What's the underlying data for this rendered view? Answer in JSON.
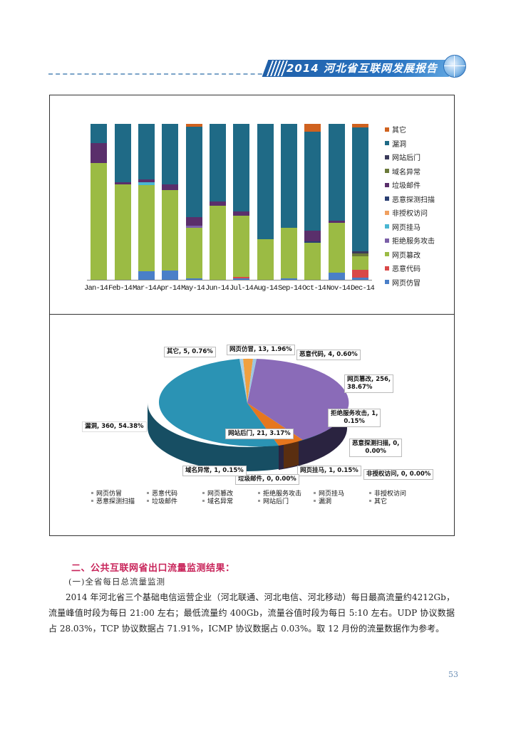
{
  "header": {
    "title": "2014 河北省互联网发展报告",
    "band_color": "#1f5fa8",
    "rule_color": "#7aa3c8"
  },
  "colors": {
    "其它": "#d0621f",
    "漏洞": "#1f6a86",
    "网站后门": "#3a3a5a",
    "域名异常": "#6b7a3a",
    "垃圾邮件": "#5a2f6b",
    "恶意探测扫描": "#2a3f72",
    "非授权访问": "#f0a060",
    "网页挂马": "#4ab6d2",
    "拒绝服务攻击": "#7b5fa8",
    "网页篡改": "#9bbb44",
    "恶意代码": "#d94848",
    "网页仿冒": "#4a7fc8"
  },
  "chart_data": [
    {
      "type": "bar",
      "stacked": true,
      "percent_stacked": true,
      "title": "",
      "xlabel": "",
      "ylabel": "",
      "ylim": [
        0,
        100
      ],
      "categories": [
        "Jan-14",
        "Feb-14",
        "Mar-14",
        "Apr-14",
        "May-14",
        "Jun-14",
        "Jul-14",
        "Aug-14",
        "Sep-14",
        "Oct-14",
        "Nov-14",
        "Dec-14"
      ],
      "legend_position": "right",
      "legend": [
        "其它",
        "漏洞",
        "网站后门",
        "域名异常",
        "垃圾邮件",
        "恶意探测扫描",
        "非授权访问",
        "网页挂马",
        "拒绝服务攻击",
        "网页篡改",
        "恶意代码",
        "网页仿冒"
      ],
      "series": [
        {
          "name": "网页仿冒",
          "values": [
            0,
            0,
            5.3,
            5.8,
            1.0,
            0,
            1.0,
            0,
            1.0,
            0,
            4.6,
            1.5
          ]
        },
        {
          "name": "恶意代码",
          "values": [
            0,
            0,
            0,
            0,
            0,
            0,
            1.0,
            0,
            0,
            0,
            0,
            4.9
          ]
        },
        {
          "name": "网页篡改",
          "values": [
            75.0,
            61.4,
            55.6,
            51.8,
            32.3,
            47.7,
            39.0,
            26.2,
            32.5,
            23.9,
            31.9,
            8.8
          ]
        },
        {
          "name": "拒绝服务攻击",
          "values": [
            0,
            0,
            0,
            0,
            1.5,
            0,
            0,
            0,
            0,
            0,
            0,
            0
          ]
        },
        {
          "name": "网页挂马",
          "values": [
            0,
            0,
            1.7,
            0,
            0,
            0,
            0,
            0,
            0,
            0,
            0,
            0
          ]
        },
        {
          "name": "非授权访问",
          "values": [
            0,
            0,
            0,
            0,
            0,
            0,
            0,
            0,
            0,
            0,
            0,
            0
          ]
        },
        {
          "name": "恶意探测扫描",
          "values": [
            0,
            0,
            0,
            0,
            0,
            0,
            0,
            0,
            0,
            0.8,
            0,
            0
          ]
        },
        {
          "name": "垃圾邮件",
          "values": [
            12.5,
            1.2,
            1.8,
            3.7,
            5.3,
            2.6,
            3.0,
            0,
            0,
            6.6,
            1.4,
            0
          ]
        },
        {
          "name": "域名异常",
          "values": [
            0,
            0,
            0,
            0,
            0,
            0,
            0,
            0,
            0,
            0,
            0,
            1.8
          ]
        },
        {
          "name": "网站后门",
          "values": [
            0,
            0,
            0,
            0,
            0,
            0,
            0,
            0,
            0,
            0,
            0,
            1.5
          ]
        },
        {
          "name": "漏洞",
          "values": [
            12.5,
            37.4,
            35.6,
            38.7,
            57.9,
            49.7,
            56.0,
            73.8,
            66.5,
            63.5,
            62.1,
            79.4
          ]
        },
        {
          "name": "其它",
          "values": [
            0,
            0,
            0,
            0,
            2.0,
            0,
            0,
            0,
            0,
            5.2,
            0,
            2.1
          ]
        }
      ]
    },
    {
      "type": "pie",
      "title": "",
      "legend_position": "bottom",
      "slices": [
        {
          "name": "网页仿冒",
          "value": 13,
          "percent": 1.96
        },
        {
          "name": "恶意代码",
          "value": 4,
          "percent": 0.6
        },
        {
          "name": "网页篡改",
          "value": 256,
          "percent": 38.67
        },
        {
          "name": "拒绝服务攻击",
          "value": 1,
          "percent": 0.15
        },
        {
          "name": "网页挂马",
          "value": 1,
          "percent": 0.15
        },
        {
          "name": "非授权访问",
          "value": 0,
          "percent": 0.0
        },
        {
          "name": "恶意探测扫描",
          "value": 0,
          "percent": 0.0
        },
        {
          "name": "垃圾邮件",
          "value": 0,
          "percent": 0.0
        },
        {
          "name": "域名异常",
          "value": 1,
          "percent": 0.15
        },
        {
          "name": "网站后门",
          "value": 21,
          "percent": 3.17
        },
        {
          "name": "漏洞",
          "value": 360,
          "percent": 54.38
        },
        {
          "name": "其它",
          "value": 5,
          "percent": 0.76
        }
      ],
      "labels": [
        "其它, 5, 0.76%",
        "网页仿冒, 13, 1.96%",
        "恶意代码, 4, 0.60%",
        "网页篡改, 256, 38.67%",
        "拒绝服务攻击, 1, 0.15%",
        "恶意探测扫描, 0, 0.00%",
        "非授权访问, 0, 0.00%",
        "网页挂马, 1, 0.15%",
        "垃圾邮件, 0, 0.00%",
        "域名异常, 1, 0.15%",
        "网站后门, 21, 3.17%",
        "漏洞, 360, 54.38%"
      ],
      "legend": [
        "网页仿冒",
        "恶意代码",
        "网页篡改",
        "拒绝服务攻击",
        "网页挂马",
        "非授权访问",
        "恶意探测扫描",
        "垃圾邮件",
        "域名异常",
        "网站后门",
        "漏洞",
        "其它"
      ]
    }
  ],
  "bar_chart": {
    "x_labels": [
      "Jan-14",
      "Feb-14",
      "Mar-14",
      "Apr-14",
      "May-14",
      "Jun-14",
      "Jul-14",
      "Aug-14",
      "Sep-14",
      "Oct-14",
      "Nov-14",
      "Dec-14"
    ],
    "legend": [
      "其它",
      "漏洞",
      "网站后门",
      "域名异常",
      "垃圾邮件",
      "恶意探测扫描",
      "非授权访问",
      "网页挂马",
      "拒绝服务攻击",
      "网页篡改",
      "恶意代码",
      "网页仿冒"
    ]
  },
  "pie_chart": {
    "labels": {
      "qita": "其它, 5, 0.76%",
      "fangmao": "网页仿冒, 13, 1.96%",
      "daima": "恶意代码, 4, 0.60%",
      "cuangai_1": "网页篡改, 256,",
      "cuangai_2": "38.67%",
      "jujue_1": "拒绝服务攻击, 1,",
      "jujue_2": "0.15%",
      "tance_1": "恶意探测扫描, 0,",
      "tance_2": "0.00%",
      "feishouquan": "非授权访问, 0, 0.00%",
      "guama": "网页挂马, 1, 0.15%",
      "laji": "垃圾邮件, 0, 0.00%",
      "yuming": "域名异常, 1, 0.15%",
      "houmen": "网站后门, 21, 3.17%",
      "loudong": "漏洞, 360, 54.38%"
    },
    "legend": [
      "网页仿冒",
      "恶意代码",
      "网页篡改",
      "拒绝服务攻击",
      "网页挂马",
      "非授权访问",
      "恶意探测扫描",
      "垃圾邮件",
      "域名异常",
      "网站后门",
      "漏洞",
      "其它"
    ]
  },
  "section": {
    "title": "二、公共互联网省出口流量监测结果：",
    "subtitle": "(一)全省每日总流量监测",
    "paragraph": "2014 年河北省三个基础电信运营企业（河北联通、河北电信、河北移动）每日最高流量约4212Gb，流量峰值时段为每日 21:00 左右；最低流量约 400Gb，流量谷值时段为每日 5:10 左右。UDP 协议数据占 28.03%，TCP 协议数据占 71.91%，ICMP 协议数据占 0.03%。取 12 月份的流量数据作为参考。"
  },
  "footer": {
    "page_number": "53"
  }
}
